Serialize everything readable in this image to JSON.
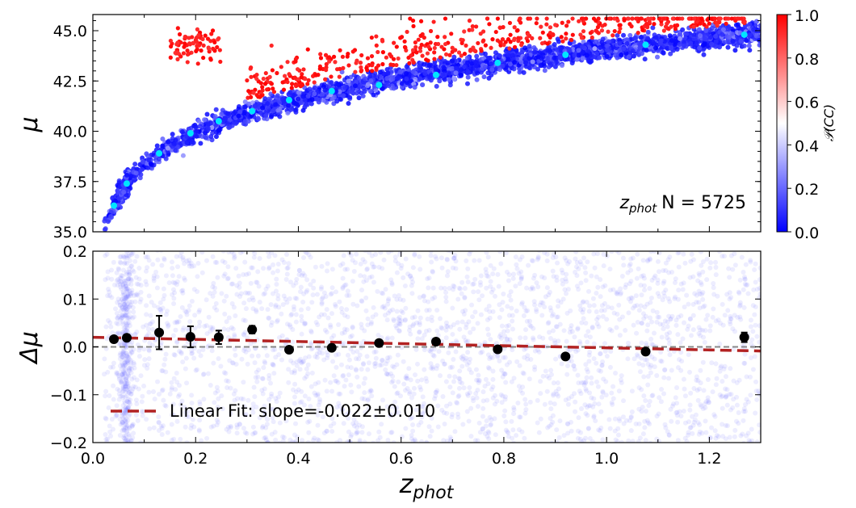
{
  "chart_data": [
    {
      "type": "scatter",
      "panel": "top",
      "xlim": [
        0.0,
        1.3
      ],
      "ylim": [
        35.0,
        46.0
      ],
      "ylabel": "μ",
      "yticks": [
        "35.0",
        "37.5",
        "40.0",
        "42.5",
        "45.0"
      ],
      "annotation_var": "z",
      "annotation_sub": "phot",
      "annotation_text": "N = 5725",
      "colorbar": {
        "label": "𝒫(CC)",
        "ticks": [
          "0.0",
          "0.2",
          "0.4",
          "0.6",
          "0.8",
          "1.0"
        ],
        "range": [
          0.0,
          1.0
        ],
        "colormap": "bwr",
        "low_color": "#0000ff",
        "mid_color": "#ffffff",
        "high_color": "#ff0000"
      },
      "binned_color": "#00e5ff",
      "binned_points": {
        "x": [
          0.041,
          0.066,
          0.129,
          0.19,
          0.245,
          0.31,
          0.382,
          0.465,
          0.557,
          0.668,
          0.788,
          0.92,
          1.076,
          1.268
        ],
        "y": [
          36.3,
          37.4,
          38.9,
          39.9,
          40.5,
          41.0,
          41.55,
          42.0,
          42.3,
          42.8,
          43.4,
          43.8,
          44.3,
          44.8
        ]
      }
    },
    {
      "type": "scatter",
      "panel": "bottom",
      "xlim": [
        0.0,
        1.3
      ],
      "ylim": [
        -0.2,
        0.2
      ],
      "xlabel_var": "z",
      "xlabel_sub": "phot",
      "ylabel": "Δμ",
      "xticks": [
        "0.0",
        "0.2",
        "0.4",
        "0.6",
        "0.8",
        "1.0",
        "1.2"
      ],
      "yticks": [
        "−0.2",
        "−0.1",
        "0.0",
        "0.1",
        "0.2"
      ],
      "binned_points": {
        "x": [
          0.041,
          0.066,
          0.129,
          0.19,
          0.245,
          0.31,
          0.382,
          0.465,
          0.557,
          0.668,
          0.788,
          0.92,
          1.076,
          1.268
        ],
        "y": [
          0.016,
          0.019,
          0.03,
          0.021,
          0.02,
          0.036,
          -0.006,
          -0.002,
          0.008,
          0.011,
          -0.005,
          -0.02,
          -0.01,
          0.02
        ],
        "yerr": [
          0.004,
          0.004,
          0.035,
          0.022,
          0.014,
          0.008,
          0.006,
          0.005,
          0.005,
          0.004,
          0.004,
          0.004,
          0.006,
          0.01
        ]
      },
      "reference_line": 0.0,
      "fit": {
        "intercept": 0.02,
        "slope": -0.022,
        "slope_err": 0.01,
        "color": "#b22222",
        "legend": "Linear Fit: slope=-0.022±0.010"
      },
      "legend_placement": "lower-left"
    }
  ]
}
